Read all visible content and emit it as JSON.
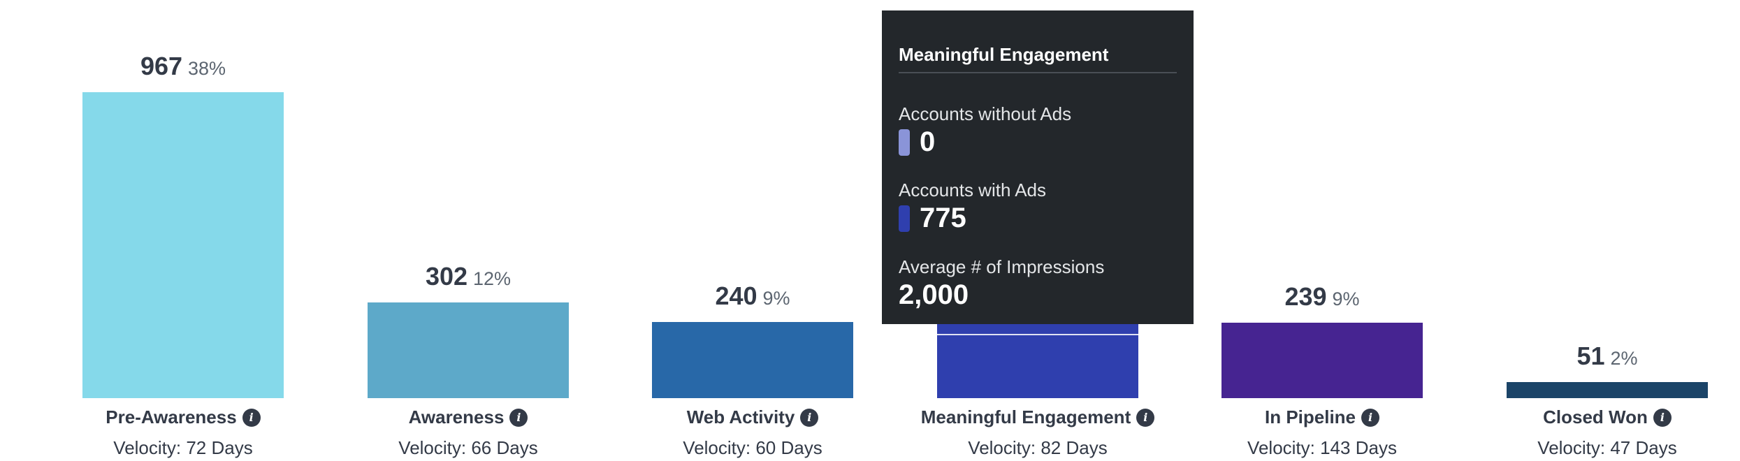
{
  "chart_data": {
    "type": "bar",
    "categories": [
      "Pre-Awareness",
      "Awareness",
      "Web Activity",
      "Meaningful Engagement",
      "In Pipeline",
      "Closed Won"
    ],
    "values": [
      967,
      302,
      240,
      775,
      239,
      51
    ],
    "percents": [
      "38%",
      "12%",
      "9%",
      "",
      "9%",
      "2%"
    ],
    "velocities": [
      "Velocity: 72 Days",
      "Velocity: 66 Days",
      "Velocity: 60 Days",
      "Velocity: 82 Days",
      "Velocity: 143 Days",
      "Velocity: 47 Days"
    ],
    "colors": [
      "#85d9ea",
      "#5da9c9",
      "#2868a8",
      "#2f3fae",
      "#462491",
      "#1b4468"
    ],
    "ylim": [
      0,
      1000
    ],
    "tooltip": {
      "title": "Meaningful Engagement",
      "items": [
        {
          "label": "Accounts without Ads",
          "value": "0",
          "color": "#8a94d8"
        },
        {
          "label": "Accounts with Ads",
          "value": "775",
          "color": "#2f3fae"
        },
        {
          "label": "Average # of Impressions",
          "value": "2,000",
          "color": ""
        }
      ]
    }
  }
}
